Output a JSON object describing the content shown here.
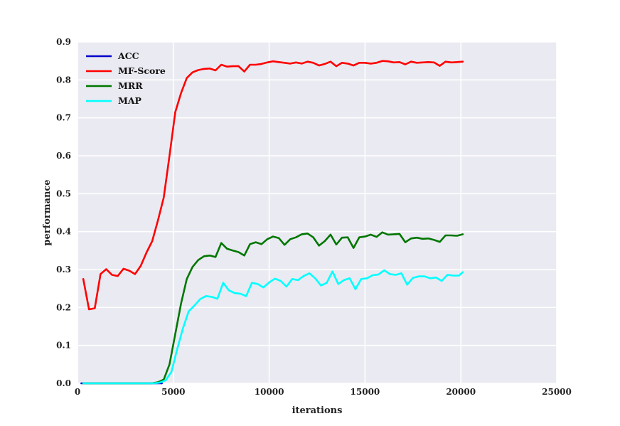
{
  "chart_data": {
    "type": "line",
    "xlabel": "iterations",
    "ylabel": "performance",
    "xlim": [
      0,
      25000
    ],
    "ylim": [
      0,
      0.9
    ],
    "xticks": [
      0,
      5000,
      10000,
      15000,
      20000,
      25000
    ],
    "yticks": [
      0.0,
      0.1,
      0.2,
      0.3,
      0.4,
      0.5,
      0.6,
      0.7,
      0.8,
      0.9
    ],
    "xtick_labels": [
      "0",
      "5000",
      "10000",
      "15000",
      "20000",
      "25000"
    ],
    "ytick_labels": [
      "0.0",
      "0.1",
      "0.2",
      "0.3",
      "0.4",
      "0.5",
      "0.6",
      "0.7",
      "0.8",
      "0.9"
    ],
    "grid": true,
    "legend_position": "top-left",
    "series": [
      {
        "name": "ACC",
        "color": "#0000cc",
        "x": [
          200,
          4000,
          4200,
          4400
        ],
        "y": [
          0.0,
          0.0,
          0.0,
          0.0
        ]
      },
      {
        "name": "MF-Score",
        "color": "#ff0000",
        "x": [
          300,
          600,
          900,
          1200,
          1500,
          1800,
          2100,
          2400,
          2700,
          3000,
          3300,
          3600,
          3900,
          4200,
          4500,
          4800,
          5100,
          5400,
          5700,
          6000,
          6300,
          6600,
          6900,
          7200,
          7500,
          7800,
          8100,
          8400,
          8700,
          9000,
          9300,
          9600,
          9900,
          10200,
          10500,
          10800,
          11100,
          11400,
          11700,
          12000,
          12300,
          12600,
          12900,
          13200,
          13500,
          13800,
          14100,
          14400,
          14700,
          15000,
          15300,
          15600,
          15900,
          16200,
          16500,
          16800,
          17100,
          17400,
          17700,
          18000,
          18300,
          18600,
          18900,
          19200,
          19500,
          19800,
          20100
        ],
        "y": [
          0.275,
          0.195,
          0.198,
          0.288,
          0.301,
          0.286,
          0.283,
          0.302,
          0.297,
          0.288,
          0.31,
          0.345,
          0.375,
          0.43,
          0.49,
          0.6,
          0.715,
          0.765,
          0.805,
          0.82,
          0.826,
          0.829,
          0.83,
          0.825,
          0.84,
          0.835,
          0.836,
          0.836,
          0.822,
          0.84,
          0.84,
          0.842,
          0.846,
          0.849,
          0.847,
          0.845,
          0.843,
          0.846,
          0.843,
          0.848,
          0.845,
          0.838,
          0.842,
          0.848,
          0.836,
          0.845,
          0.843,
          0.838,
          0.845,
          0.845,
          0.843,
          0.845,
          0.85,
          0.849,
          0.846,
          0.847,
          0.841,
          0.848,
          0.845,
          0.846,
          0.847,
          0.846,
          0.837,
          0.848,
          0.846,
          0.847,
          0.848
        ]
      },
      {
        "name": "MRR",
        "color": "#007700",
        "x": [
          300,
          3900,
          4200,
          4500,
          4800,
          5100,
          5400,
          5700,
          6000,
          6300,
          6600,
          6900,
          7200,
          7500,
          7800,
          8100,
          8400,
          8700,
          9000,
          9300,
          9600,
          9900,
          10200,
          10500,
          10800,
          11100,
          11400,
          11700,
          12000,
          12300,
          12600,
          12900,
          13200,
          13500,
          13800,
          14100,
          14400,
          14700,
          15000,
          15300,
          15600,
          15900,
          16200,
          16500,
          16800,
          17100,
          17400,
          17700,
          18000,
          18300,
          18600,
          18900,
          19200,
          19500,
          19800,
          20100
        ],
        "y": [
          0.0,
          0.0,
          0.003,
          0.01,
          0.05,
          0.13,
          0.21,
          0.275,
          0.307,
          0.325,
          0.335,
          0.337,
          0.333,
          0.37,
          0.355,
          0.35,
          0.346,
          0.337,
          0.367,
          0.372,
          0.367,
          0.38,
          0.387,
          0.383,
          0.365,
          0.38,
          0.385,
          0.393,
          0.395,
          0.385,
          0.363,
          0.375,
          0.392,
          0.366,
          0.384,
          0.385,
          0.357,
          0.385,
          0.387,
          0.392,
          0.386,
          0.398,
          0.392,
          0.393,
          0.394,
          0.372,
          0.382,
          0.384,
          0.381,
          0.382,
          0.378,
          0.373,
          0.39,
          0.39,
          0.389,
          0.393
        ]
      },
      {
        "name": "MAP",
        "color": "#00ffff",
        "x": [
          300,
          4000,
          4300,
          4600,
          4900,
          5200,
          5500,
          5800,
          6100,
          6400,
          6700,
          7000,
          7300,
          7600,
          7900,
          8200,
          8500,
          8800,
          9100,
          9400,
          9700,
          10000,
          10300,
          10600,
          10900,
          11200,
          11500,
          11800,
          12100,
          12400,
          12700,
          13000,
          13300,
          13600,
          13900,
          14200,
          14500,
          14800,
          15100,
          15400,
          15700,
          16000,
          16300,
          16600,
          16900,
          17200,
          17500,
          17800,
          18100,
          18400,
          18700,
          19000,
          19300,
          19600,
          19900,
          20100
        ],
        "y": [
          0.0,
          0.0,
          0.002,
          0.008,
          0.03,
          0.09,
          0.145,
          0.19,
          0.205,
          0.222,
          0.23,
          0.228,
          0.223,
          0.265,
          0.245,
          0.238,
          0.236,
          0.23,
          0.265,
          0.262,
          0.253,
          0.266,
          0.276,
          0.27,
          0.255,
          0.275,
          0.272,
          0.283,
          0.29,
          0.277,
          0.258,
          0.265,
          0.295,
          0.262,
          0.272,
          0.277,
          0.248,
          0.275,
          0.277,
          0.285,
          0.287,
          0.298,
          0.288,
          0.286,
          0.29,
          0.26,
          0.278,
          0.282,
          0.282,
          0.277,
          0.279,
          0.27,
          0.286,
          0.284,
          0.284,
          0.293
        ]
      }
    ]
  }
}
